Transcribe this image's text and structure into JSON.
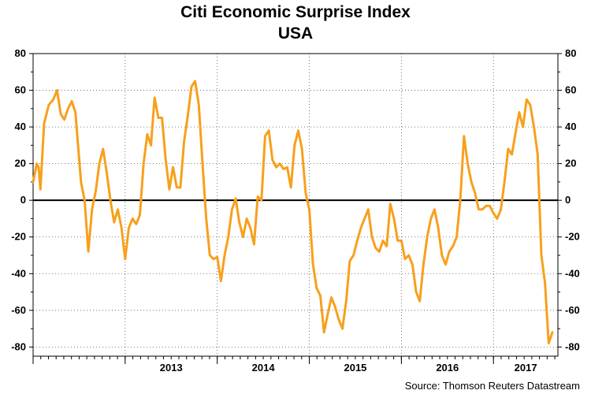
{
  "title_line1": "Citi Economic Surprise Index",
  "title_line2": "USA",
  "source": "Source: Thomson Reuters Datastream",
  "colors": {
    "series": "#F7A01C",
    "axis": "#000000",
    "grid": "#555555"
  },
  "chart_data": {
    "type": "line",
    "title": "Citi Economic Surprise Index USA",
    "xlabel": "",
    "ylabel": "",
    "ylim": [
      -85,
      80
    ],
    "yticks": [
      80,
      60,
      40,
      20,
      0,
      -20,
      -40,
      -60,
      -80
    ],
    "y_axis_both_sides": true,
    "grid": "dotted",
    "x_range": [
      2012.0,
      2017.7
    ],
    "x_year_labels": [
      "2013",
      "2014",
      "2015",
      "2016",
      "2017"
    ],
    "zero_line": true,
    "series": [
      {
        "x": [
          2012.0,
          2012.04,
          2012.06,
          2012.08,
          2012.12,
          2012.17,
          2012.22,
          2012.26,
          2012.3,
          2012.34,
          2012.38,
          2012.42,
          2012.46,
          2012.52,
          2012.56,
          2012.6,
          2012.64,
          2012.68,
          2012.72,
          2012.76,
          2012.8,
          2012.84,
          2012.88,
          2012.92,
          2012.96,
          2013.0,
          2013.04,
          2013.08,
          2013.12,
          2013.16,
          2013.2,
          2013.24,
          2013.28,
          2013.32,
          2013.36,
          2013.4,
          2013.44,
          2013.48,
          2013.52,
          2013.56,
          2013.6,
          2013.64,
          2013.68,
          2013.72,
          2013.76,
          2013.8,
          2013.84,
          2013.88,
          2013.92,
          2013.96,
          2014.0,
          2014.04,
          2014.08,
          2014.12,
          2014.16,
          2014.2,
          2014.24,
          2014.28,
          2014.32,
          2014.36,
          2014.4,
          2014.44,
          2014.48,
          2014.52,
          2014.56,
          2014.6,
          2014.64,
          2014.68,
          2014.72,
          2014.76,
          2014.8,
          2014.84,
          2014.88,
          2014.92,
          2014.96,
          2015.0,
          2015.04,
          2015.08,
          2015.12,
          2015.16,
          2015.2,
          2015.24,
          2015.28,
          2015.32,
          2015.36,
          2015.4,
          2015.44,
          2015.48,
          2015.52,
          2015.56,
          2015.6,
          2015.64,
          2015.68,
          2015.72,
          2015.76,
          2015.8,
          2015.84,
          2015.88,
          2015.92,
          2015.96,
          2016.0,
          2016.04,
          2016.08,
          2016.12,
          2016.16,
          2016.2,
          2016.24,
          2016.28,
          2016.32,
          2016.36,
          2016.4,
          2016.44,
          2016.48,
          2016.52,
          2016.56,
          2016.6,
          2016.64,
          2016.68,
          2016.72,
          2016.76,
          2016.8,
          2016.84,
          2016.88,
          2016.92,
          2016.96,
          2017.0,
          2017.04,
          2017.08,
          2017.12,
          2017.16,
          2017.2,
          2017.24,
          2017.28,
          2017.32,
          2017.36,
          2017.4,
          2017.44,
          2017.48,
          2017.52,
          2017.56,
          2017.6,
          2017.64
        ],
        "y": [
          10,
          20,
          18,
          6,
          42,
          52,
          55,
          60,
          47,
          44,
          50,
          54,
          48,
          10,
          0,
          -28,
          -5,
          5,
          20,
          28,
          15,
          0,
          -12,
          -5,
          -15,
          -32,
          -15,
          -10,
          -13,
          -8,
          20,
          36,
          30,
          56,
          45,
          45,
          22,
          6,
          18,
          7,
          7,
          32,
          46,
          62,
          65,
          52,
          20,
          -10,
          -30,
          -32,
          -31,
          -44,
          -30,
          -20,
          -5,
          1,
          -12,
          -20,
          -10,
          -15,
          -24,
          2,
          0,
          35,
          38,
          22,
          18,
          20,
          17,
          18,
          7,
          30,
          38,
          28,
          4,
          -5,
          -35,
          -48,
          -52,
          -72,
          -62,
          -53,
          -58,
          -65,
          -70,
          -55,
          -33,
          -30,
          -22,
          -15,
          -10,
          -5,
          -20,
          -26,
          -28,
          -22,
          -25,
          -2,
          -10,
          -22,
          -22,
          -32,
          -30,
          -35,
          -50,
          -55,
          -35,
          -20,
          -10,
          -5,
          -15,
          -30,
          -35,
          -28,
          -25,
          -20,
          0,
          35,
          20,
          10,
          4,
          -5,
          -5,
          -3,
          -3,
          -7,
          -10,
          -5,
          10,
          28,
          25,
          37,
          48,
          40,
          55,
          52,
          40,
          25,
          -30,
          -45,
          -78,
          -72
        ]
      }
    ]
  }
}
